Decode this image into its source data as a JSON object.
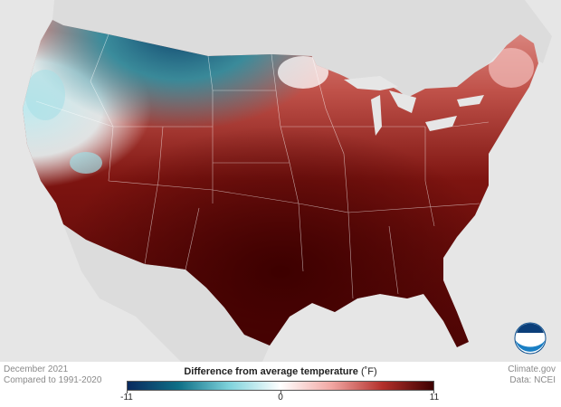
{
  "map": {
    "variable": "Difference from average temperature",
    "unit": "(˚F)",
    "period": "December 2021",
    "baseline": "Compared to 1991-2020"
  },
  "legend": {
    "min_label": "-11",
    "mid_label": "0",
    "max_label": "11",
    "range": [
      -11,
      11
    ],
    "colors": [
      "#0a2a5e",
      "#0e6f86",
      "#7fd3dc",
      "#ffffff",
      "#f1a7a3",
      "#b3302b",
      "#3d0000"
    ]
  },
  "credits": {
    "source_site": "Climate.gov",
    "data_source": "Data: NCEI",
    "logo_text": "NOAA"
  },
  "colors": {
    "land_background": "#e6e6e6",
    "state_lines": "#ffffff"
  }
}
